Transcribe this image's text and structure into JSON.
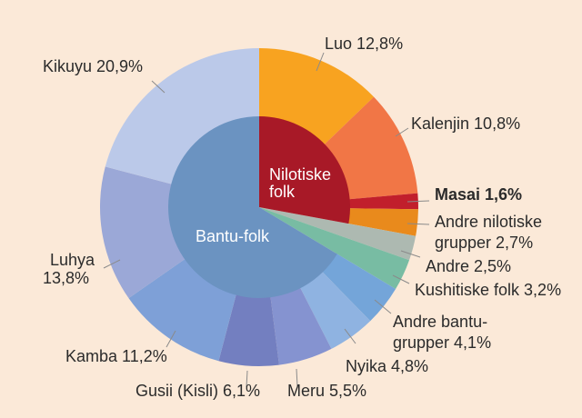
{
  "chart_data": {
    "type": "pie",
    "subtype": "sunburst-donut",
    "title": "",
    "unit": "%",
    "start": "top",
    "direction": "clockwise",
    "inner_ring": [
      {
        "name": "Nilotiske folk",
        "value": 27.9,
        "color": "#a81927"
      },
      {
        "name": "Bantu-folk",
        "value": 66.4,
        "color": "#6b93c1"
      }
    ],
    "slices": [
      {
        "name": "Luo",
        "value": 12.8,
        "label": "Luo 12,8%",
        "color": "#f8a320",
        "group": "Nilotiske folk"
      },
      {
        "name": "Kalenjin",
        "value": 10.8,
        "label": "Kalenjin 10,8%",
        "color": "#f17646",
        "group": "Nilotiske folk"
      },
      {
        "name": "Masai",
        "value": 1.6,
        "label": "Masai 1,6%",
        "color": "#c11f2c",
        "group": "Nilotiske folk",
        "highlight": true
      },
      {
        "name": "Andre nilotiske grupper",
        "value": 2.7,
        "label": [
          "Andre nilotiske",
          "grupper 2,7%"
        ],
        "color": "#e98a1c",
        "group": "Nilotiske folk"
      },
      {
        "name": "Andre",
        "value": 2.5,
        "label": "Andre 2,5%",
        "color": "#adb9b1",
        "group": ""
      },
      {
        "name": "Kushitiske folk",
        "value": 3.2,
        "label": "Kushitiske folk 3,2%",
        "color": "#78bca3",
        "group": ""
      },
      {
        "name": "Andre bantugrupper",
        "value": 4.1,
        "label": [
          "Andre bantu-",
          "grupper 4,1%"
        ],
        "color": "#74a5d9",
        "group": "Bantu-folk"
      },
      {
        "name": "Nyika",
        "value": 4.8,
        "label": "Nyika 4,8%",
        "color": "#8fb3e1",
        "group": "Bantu-folk"
      },
      {
        "name": "Meru",
        "value": 5.5,
        "label": "Meru 5,5%",
        "color": "#8593d0",
        "group": "Bantu-folk"
      },
      {
        "name": "Gusii (Kisli)",
        "value": 6.1,
        "label": "Gusii (Kisli) 6,1%",
        "color": "#737fc0",
        "group": "Bantu-folk"
      },
      {
        "name": "Kamba",
        "value": 11.2,
        "label": "Kamba 11,2%",
        "color": "#7ea0d7",
        "group": "Bantu-folk"
      },
      {
        "name": "Luhya",
        "value": 13.8,
        "label": [
          "Luhya",
          "13,8%"
        ],
        "color": "#9ba8d7",
        "group": "Bantu-folk"
      },
      {
        "name": "Kikuyu",
        "value": 20.9,
        "label": "Kikuyu 20,9%",
        "color": "#bbc9e9",
        "group": "Bantu-folk"
      }
    ],
    "inner_labels": {
      "nilotic": [
        "Nilotiske",
        "folk"
      ],
      "bantu": "Bantu-folk"
    },
    "background": "#fbe9d8"
  }
}
